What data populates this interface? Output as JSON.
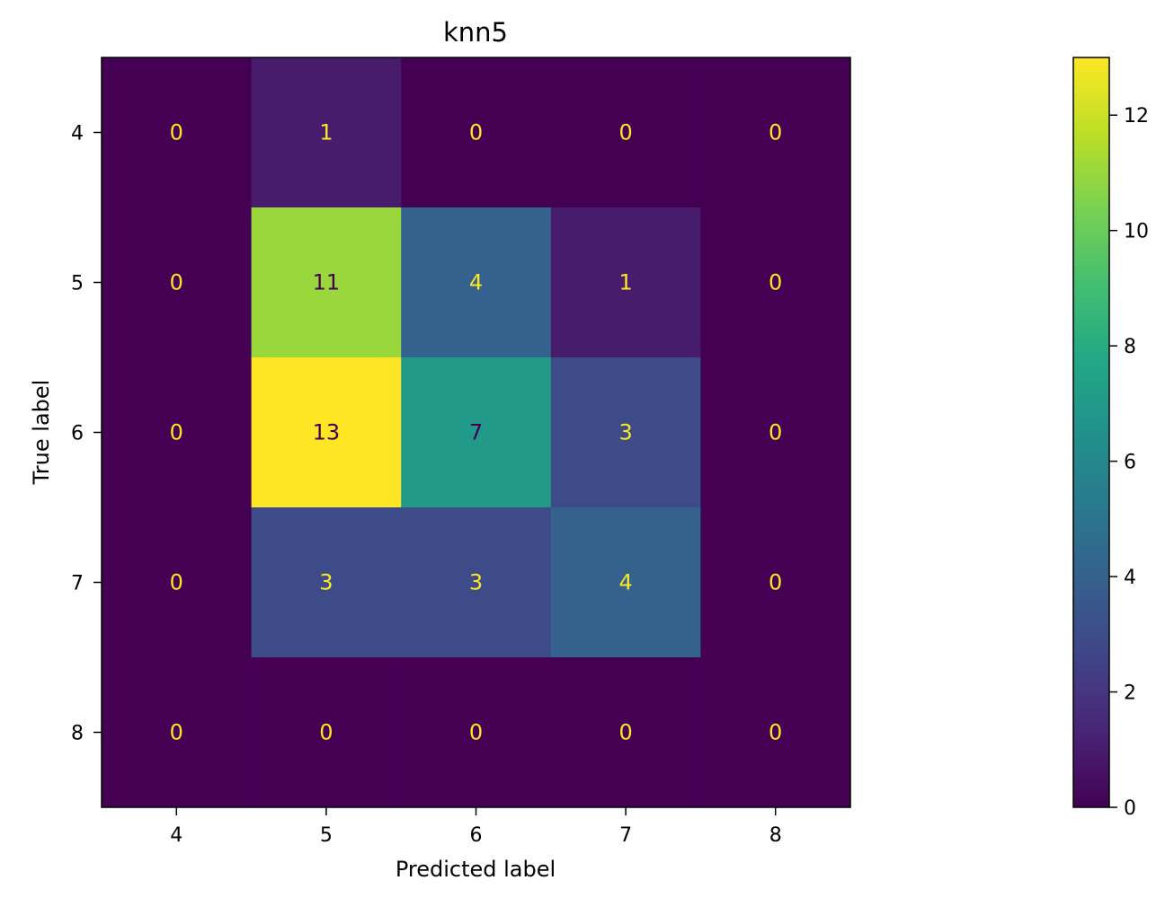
{
  "chart_data": {
    "type": "heatmap",
    "title": "knn5",
    "xlabel": "Predicted label",
    "ylabel": "True label",
    "x_categories": [
      "4",
      "5",
      "6",
      "7",
      "8"
    ],
    "y_categories": [
      "4",
      "5",
      "6",
      "7",
      "8"
    ],
    "values": [
      [
        0,
        1,
        0,
        0,
        0
      ],
      [
        0,
        11,
        4,
        1,
        0
      ],
      [
        0,
        13,
        7,
        3,
        0
      ],
      [
        0,
        3,
        3,
        4,
        0
      ],
      [
        0,
        0,
        0,
        0,
        0
      ]
    ],
    "colormap": "viridis",
    "vmin": 0,
    "vmax": 13,
    "colorbar_ticks": [
      0,
      2,
      4,
      6,
      8,
      10,
      12
    ],
    "grid": false
  }
}
